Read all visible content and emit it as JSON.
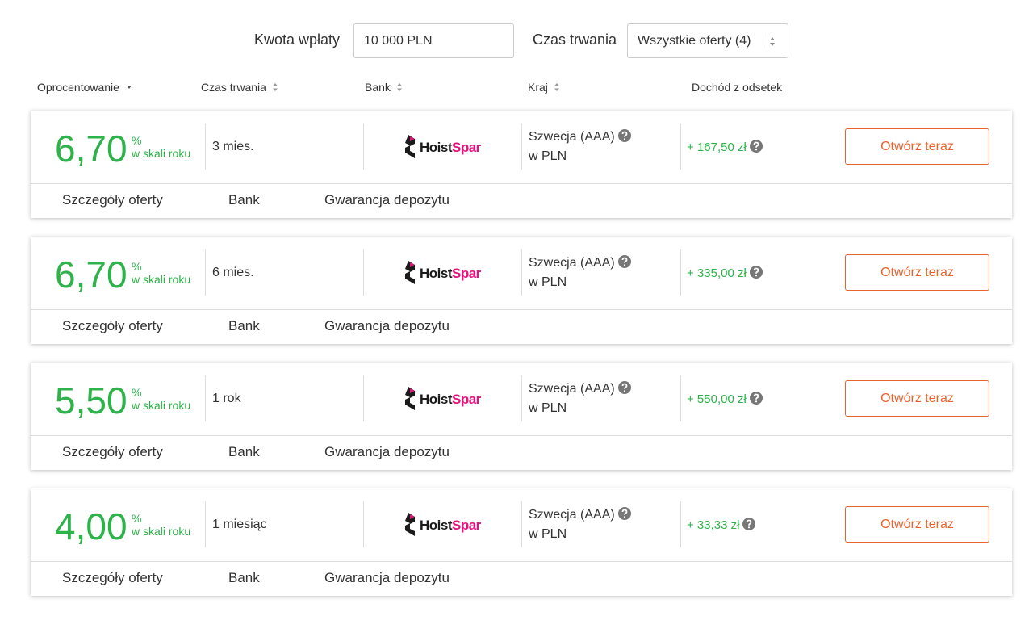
{
  "filters": {
    "amount_label": "Kwota wpłaty",
    "amount_value": "10 000 PLN",
    "duration_label": "Czas trwania",
    "duration_value": "Wszystkie oferty (4)"
  },
  "columns": [
    "Oprocentowanie",
    "Czas trwania",
    "Bank",
    "Kraj",
    "Dochód z odsetek"
  ],
  "offers": [
    {
      "rate": "6,70",
      "rate_unit": "%",
      "rate_period": "w skali roku",
      "term": "3 mies.",
      "bank_logo": [
        "Hoist",
        "Spar"
      ],
      "country": "Szwecja (AAA)",
      "currency": "w PLN",
      "income": "+ 167,50 zł",
      "button": "Otwórz teraz",
      "tabs": [
        "Szczegóły oferty",
        "Bank",
        "Gwarancja depozytu"
      ]
    },
    {
      "rate": "6,70",
      "rate_unit": "%",
      "rate_period": "w skali roku",
      "term": "6 mies.",
      "bank_logo": [
        "Hoist",
        "Spar"
      ],
      "country": "Szwecja (AAA)",
      "currency": "w PLN",
      "income": "+ 335,00 zł",
      "button": "Otwórz teraz",
      "tabs": [
        "Szczegóły oferty",
        "Bank",
        "Gwarancja depozytu"
      ]
    },
    {
      "rate": "5,50",
      "rate_unit": "%",
      "rate_period": "w skali roku",
      "term": "1 rok",
      "bank_logo": [
        "Hoist",
        "Spar"
      ],
      "country": "Szwecja (AAA)",
      "currency": "w PLN",
      "income": "+ 550,00 zł",
      "button": "Otwórz teraz",
      "tabs": [
        "Szczegóły oferty",
        "Bank",
        "Gwarancja depozytu"
      ]
    },
    {
      "rate": "4,00",
      "rate_unit": "%",
      "rate_period": "w skali roku",
      "term": "1 miesiąc",
      "bank_logo": [
        "Hoist",
        "Spar"
      ],
      "country": "Szwecja (AAA)",
      "currency": "w PLN",
      "income": "+ 33,33 zł",
      "button": "Otwórz teraz",
      "tabs": [
        "Szczegóły oferty",
        "Bank",
        "Gwarancja depozytu"
      ]
    }
  ]
}
